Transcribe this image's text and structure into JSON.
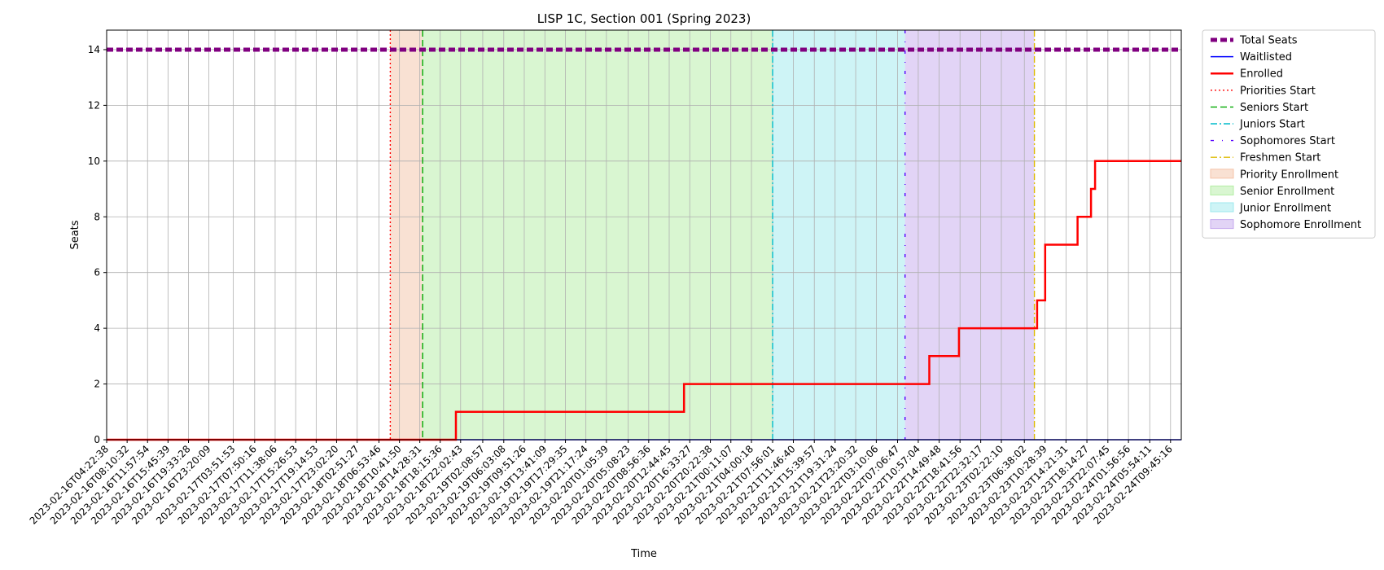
{
  "chart_data": {
    "type": "line",
    "title": "LISP 1C, Section 001 (Spring 2023)",
    "xlabel": "Time",
    "ylabel": "Seats",
    "ylim": [
      0,
      14.7
    ],
    "y_ticks": [
      0,
      2,
      4,
      6,
      8,
      10,
      12,
      14
    ],
    "grid": true,
    "legend_position": "outside-right-top",
    "x_range": [
      "2023-02-16T04:22:38",
      "2023-02-24T11:45:00"
    ],
    "x_ticks": [
      "2023-02-16T04:22:38",
      "2023-02-16T08:10:32",
      "2023-02-16T11:57:54",
      "2023-02-16T15:45:39",
      "2023-02-16T19:33:28",
      "2023-02-16T23:20:09",
      "2023-02-17T03:51:53",
      "2023-02-17T07:50:16",
      "2023-02-17T11:38:06",
      "2023-02-17T15:26:53",
      "2023-02-17T19:14:53",
      "2023-02-17T23:02:20",
      "2023-02-18T02:51:27",
      "2023-02-18T06:53:46",
      "2023-02-18T10:41:50",
      "2023-02-18T14:28:31",
      "2023-02-18T18:15:36",
      "2023-02-18T22:02:43",
      "2023-02-19T02:08:57",
      "2023-02-19T06:03:08",
      "2023-02-19T09:51:26",
      "2023-02-19T13:41:09",
      "2023-02-19T17:29:35",
      "2023-02-19T21:17:24",
      "2023-02-20T01:05:39",
      "2023-02-20T05:08:23",
      "2023-02-20T08:56:36",
      "2023-02-20T12:44:45",
      "2023-02-20T16:33:27",
      "2023-02-20T20:22:38",
      "2023-02-21T00:11:07",
      "2023-02-21T04:00:18",
      "2023-02-21T07:56:01",
      "2023-02-21T11:46:40",
      "2023-02-21T15:39:57",
      "2023-02-21T19:31:24",
      "2023-02-21T23:20:32",
      "2023-02-22T03:10:06",
      "2023-02-22T07:06:47",
      "2023-02-22T10:57:04",
      "2023-02-22T14:49:48",
      "2023-02-22T18:41:56",
      "2023-02-22T22:32:17",
      "2023-02-23T02:22:10",
      "2023-02-23T06:38:02",
      "2023-02-23T10:28:39",
      "2023-02-23T14:21:31",
      "2023-02-23T18:14:27",
      "2023-02-23T22:07:45",
      "2023-02-24T01:56:56",
      "2023-02-24T05:54:11",
      "2023-02-24T09:45:16"
    ],
    "series": [
      {
        "name": "Total Seats",
        "style": "dashed",
        "color": "#800080",
        "x": [
          "2023-02-16T04:22:38",
          "2023-02-24T11:45:00"
        ],
        "values": [
          14,
          14
        ]
      },
      {
        "name": "Waitlisted",
        "style": "solid",
        "color": "#0000ff",
        "x": [
          "2023-02-16T04:22:38",
          "2023-02-24T11:45:00"
        ],
        "values": [
          0,
          0
        ]
      },
      {
        "name": "Enrolled",
        "style": "solid",
        "color": "#ff0000",
        "step": true,
        "x": [
          "2023-02-16T04:22:38",
          "2023-02-18T21:10:00",
          "2023-02-20T15:30:00",
          "2023-02-22T13:00:00",
          "2023-02-22T18:30:00",
          "2023-02-23T09:00:00",
          "2023-02-23T10:30:00",
          "2023-02-23T16:30:00",
          "2023-02-23T19:00:00",
          "2023-02-23T19:45:00",
          "2023-02-24T11:45:00"
        ],
        "values": [
          0,
          1,
          2,
          3,
          4,
          5,
          7,
          8,
          9,
          10,
          10
        ]
      }
    ],
    "vertical_markers": [
      {
        "name": "Priorities Start",
        "x": "2023-02-18T09:00:00",
        "style": "dotted",
        "color": "#ff0000"
      },
      {
        "name": "Seniors Start",
        "x": "2023-02-18T15:00:00",
        "style": "dashed",
        "color": "#00aa00"
      },
      {
        "name": "Juniors Start",
        "x": "2023-02-21T07:56:01",
        "style": "dashdot",
        "color": "#00bbcc"
      },
      {
        "name": "Sophomores Start",
        "x": "2023-02-22T08:30:00",
        "style": "loosely-dashdot",
        "color": "#5500ff"
      },
      {
        "name": "Freshmen Start",
        "x": "2023-02-23T08:30:00",
        "style": "dashdot",
        "color": "#ddbb00"
      }
    ],
    "shaded_regions": [
      {
        "name": "Priority Enrollment",
        "x_start": "2023-02-18T09:00:00",
        "x_end": "2023-02-18T15:00:00",
        "color": "#f4c3a8",
        "opacity": 0.5
      },
      {
        "name": "Senior Enrollment",
        "x_start": "2023-02-18T15:00:00",
        "x_end": "2023-02-21T07:56:01",
        "color": "#b3eea3",
        "opacity": 0.5
      },
      {
        "name": "Junior Enrollment",
        "x_start": "2023-02-21T07:56:01",
        "x_end": "2023-02-22T08:30:00",
        "color": "#9ee9ee",
        "opacity": 0.5
      },
      {
        "name": "Sophomore Enrollment",
        "x_start": "2023-02-22T08:30:00",
        "x_end": "2023-02-23T08:30:00",
        "color": "#c5aaee",
        "opacity": 0.5
      }
    ],
    "legend": [
      "Total Seats",
      "Waitlisted",
      "Enrolled",
      "Priorities Start",
      "Seniors Start",
      "Juniors Start",
      "Sophomores Start",
      "Freshmen Start",
      "Priority Enrollment",
      "Senior Enrollment",
      "Junior Enrollment",
      "Sophomore Enrollment"
    ]
  }
}
